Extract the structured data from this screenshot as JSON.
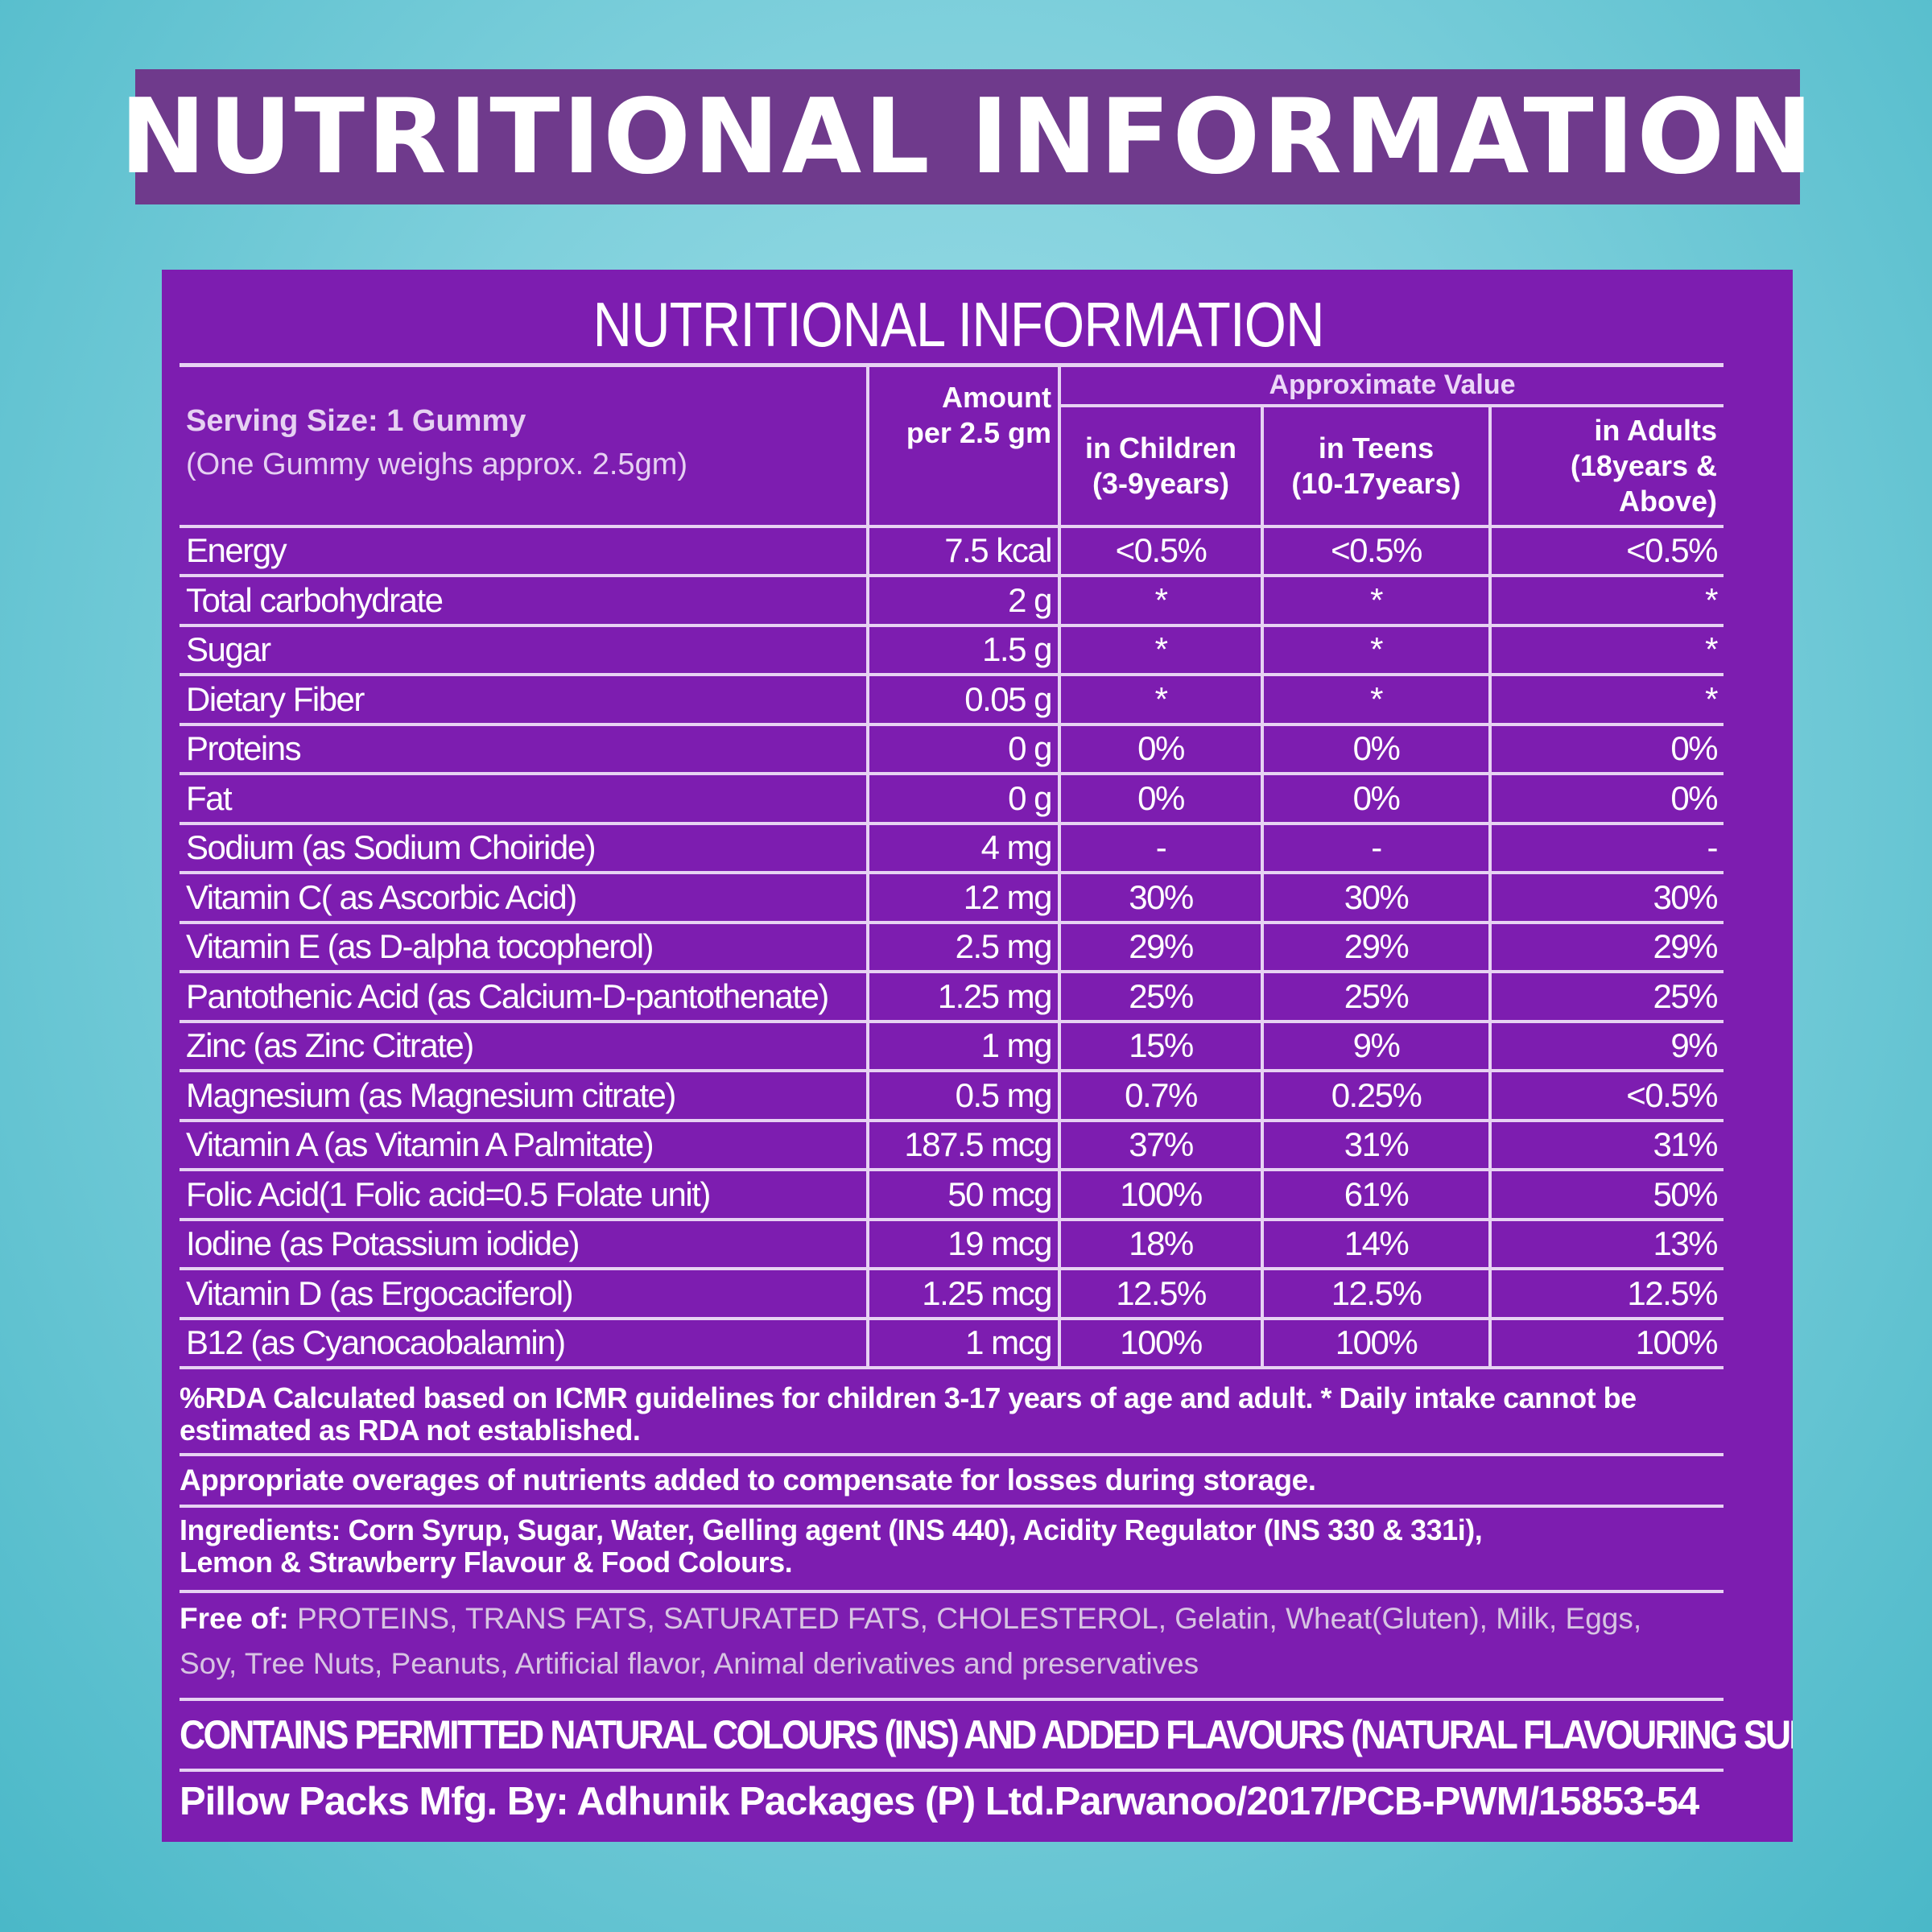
{
  "banner": {
    "title": "NUTRITIONAL INFORMATION"
  },
  "panel": {
    "title": "NUTRITIONAL INFORMATION",
    "approx_value": "Approximate Value",
    "serving_size": "Serving Size: 1 Gummy",
    "serving_note": "(One Gummy weighs approx. 2.5gm)",
    "amount_header_line1": "Amount",
    "amount_header_line2": "per 2.5 gm",
    "col_children_line1": "in Children",
    "col_children_line2": "(3-9years)",
    "col_teens_line1": "in Teens",
    "col_teens_line2": "(10-17years)",
    "col_adults_line1": "in Adults",
    "col_adults_line2": "(18years &",
    "col_adults_line3": "Above)",
    "rows": [
      {
        "name": "Energy",
        "amount": "7.5 kcal",
        "children": "<0.5%",
        "teens": "<0.5%",
        "adults": "<0.5%"
      },
      {
        "name": "Total carbohydrate",
        "amount": "2 g",
        "children": "*",
        "teens": "*",
        "adults": "*"
      },
      {
        "name": "Sugar",
        "amount": "1.5 g",
        "children": "*",
        "teens": "*",
        "adults": "*"
      },
      {
        "name": "Dietary Fiber",
        "amount": "0.05 g",
        "children": "*",
        "teens": "*",
        "adults": "*"
      },
      {
        "name": "Proteins",
        "amount": "0 g",
        "children": "0%",
        "teens": "0%",
        "adults": "0%"
      },
      {
        "name": "Fat",
        "amount": "0 g",
        "children": "0%",
        "teens": "0%",
        "adults": "0%"
      },
      {
        "name": "Sodium (as Sodium Choiride)",
        "amount": "4 mg",
        "children": "-",
        "teens": "-",
        "adults": "-"
      },
      {
        "name": "Vitamin C( as Ascorbic Acid)",
        "amount": "12  mg",
        "children": "30%",
        "teens": "30%",
        "adults": "30%"
      },
      {
        "name": "Vitamin E (as D-alpha tocopherol)",
        "amount": "2.5  mg",
        "children": "29%",
        "teens": "29%",
        "adults": "29%"
      },
      {
        "name": "Pantothenic Acid (as Calcium-D-pantothenate)",
        "amount": "1.25  mg",
        "children": "25%",
        "teens": "25%",
        "adults": "25%"
      },
      {
        "name": "Zinc (as Zinc Citrate)",
        "amount": "1  mg",
        "children": "15%",
        "teens": "9%",
        "adults": "9%"
      },
      {
        "name": "Magnesium  (as Magnesium citrate)",
        "amount": "0.5  mg",
        "children": "0.7%",
        "teens": "0.25%",
        "adults": "<0.5%"
      },
      {
        "name": "Vitamin A (as Vitamin A Palmitate)",
        "amount": "187.5  mcg",
        "children": "37%",
        "teens": "31%",
        "adults": "31%"
      },
      {
        "name": "Folic Acid(1 Folic acid=0.5 Folate unit)",
        "amount": "50  mcg",
        "children": "100%",
        "teens": "61%",
        "adults": "50%"
      },
      {
        "name": "Iodine (as Potassium iodide)",
        "amount": "19  mcg",
        "children": "18%",
        "teens": "14%",
        "adults": "13%"
      },
      {
        "name": "Vitamin D (as Ergocaciferol)",
        "amount": "1.25  mcg",
        "children": "12.5%",
        "teens": "12.5%",
        "adults": "12.5%"
      },
      {
        "name": "B12 (as Cyanocaobalamin)",
        "amount": "1  mcg",
        "children": "100%",
        "teens": "100%",
        "adults": "100%"
      }
    ],
    "rda_note": "%RDA Calculated based on ICMR guidelines for children 3-17 years of age and adult.  * Daily intake cannot be estimated as RDA not established.",
    "overages_note": "Appropriate overages of nutrients added to compensate for losses during storage.",
    "ingredients_line1": "Ingredients: Corn Syrup, Sugar, Water, Gelling agent (INS 440), Acidity Regulator (INS 330 & 331i),",
    "ingredients_line2": "Lemon & Strawberry Flavour & Food Colours.",
    "free_of_label": "Free of:",
    "free_of_line1": " PROTEINS, TRANS FATS, SATURATED FATS, CHOLESTEROL, Gelatin, Wheat(Gluten), Milk, Eggs,",
    "free_of_line2": "Soy, Tree Nuts, Peanuts, Artificial flavor, Animal derivatives and preservatives",
    "contains_note": "CONTAINS PERMITTED NATURAL COLOURS (INS) AND ADDED FLAVOURS (NATURAL FLAVOURING SUBSTANCES)",
    "mfg_note": "Pillow Packs Mfg. By: Adhunik Packages (P) Ltd.Parwanoo/2017/PCB-PWM/15853-54"
  },
  "colors": {
    "background": "#7fd0dc",
    "banner": "#6f3a8c",
    "panel": "#7d1db0",
    "rule": "#e7d2f3"
  }
}
